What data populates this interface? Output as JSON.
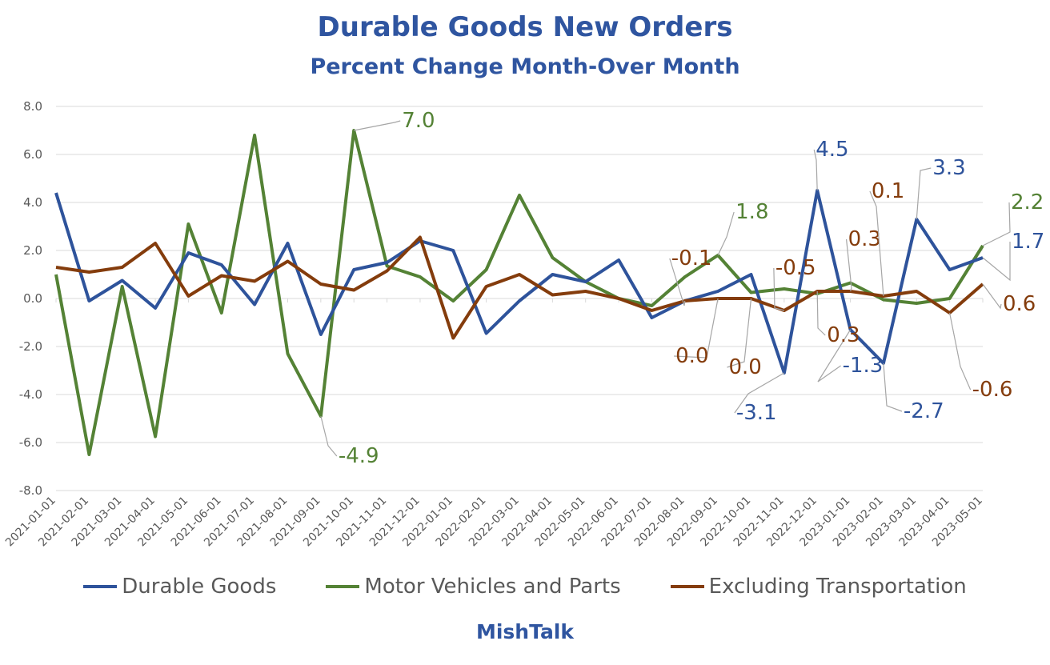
{
  "chart_data": {
    "type": "line",
    "title": "Durable Goods New Orders",
    "subtitle": "Percent Change Month-Over Month",
    "ylim": [
      -8,
      8
    ],
    "yticks": [
      "8.0",
      "6.0",
      "4.0",
      "2.0",
      "0.0",
      "-2.0",
      "-4.0",
      "-6.0",
      "-8.0"
    ],
    "ytick_values": [
      8,
      6,
      4,
      2,
      0,
      -2,
      -4,
      -6,
      -8
    ],
    "grid": true,
    "legend_position": "bottom",
    "x": [
      "2021-01-01",
      "2021-02-01",
      "2021-03-01",
      "2021-04-01",
      "2021-05-01",
      "2021-06-01",
      "2021-07-01",
      "2021-08-01",
      "2021-09-01",
      "2021-10-01",
      "2021-11-01",
      "2021-12-01",
      "2022-01-01",
      "2022-02-01",
      "2022-03-01",
      "2022-04-01",
      "2022-05-01",
      "2022-06-01",
      "2022-07-01",
      "2022-08-01",
      "2022-09-01",
      "2022-10-01",
      "2022-11-01",
      "2022-12-01",
      "2023-01-01",
      "2023-02-01",
      "2023-03-01",
      "2023-04-01",
      "2023-05-01"
    ],
    "series": [
      {
        "name": "Durable Goods",
        "color": "#2e539b",
        "values": [
          4.4,
          -0.1,
          0.75,
          -0.4,
          1.9,
          1.4,
          -0.25,
          2.3,
          -1.5,
          1.2,
          1.5,
          2.4,
          2.0,
          -1.45,
          -0.1,
          1.0,
          0.7,
          1.6,
          -0.8,
          -0.1,
          0.3,
          1.0,
          -3.1,
          4.5,
          -1.3,
          -2.7,
          3.3,
          1.2,
          1.7
        ]
      },
      {
        "name": "Motor Vehicles and Parts",
        "color": "#548235",
        "values": [
          1.0,
          -6.5,
          0.5,
          -5.75,
          3.1,
          -0.6,
          6.8,
          -2.3,
          -4.9,
          7.0,
          1.35,
          0.9,
          -0.1,
          1.2,
          4.3,
          1.7,
          0.7,
          0.0,
          -0.3,
          0.9,
          1.8,
          0.25,
          0.4,
          0.2,
          0.65,
          -0.05,
          -0.2,
          0.0,
          2.2
        ]
      },
      {
        "name": "Excluding Transportation",
        "color": "#843c0c",
        "values": [
          1.3,
          1.1,
          1.3,
          2.3,
          0.1,
          0.95,
          0.72,
          1.55,
          0.6,
          0.35,
          1.15,
          2.55,
          -1.65,
          0.5,
          1.0,
          0.15,
          0.3,
          0.0,
          -0.5,
          -0.1,
          0.0,
          0.0,
          -0.5,
          0.3,
          0.3,
          0.1,
          0.3,
          -0.6,
          0.6
        ]
      }
    ],
    "annotations": [
      {
        "text": "7.0",
        "series": 1,
        "index": 9,
        "color": "#548235"
      },
      {
        "text": "-4.9",
        "series": 1,
        "index": 8,
        "color": "#548235"
      },
      {
        "text": "1.8",
        "series": 1,
        "index": 20,
        "color": "#548235"
      },
      {
        "text": "2.2",
        "series": 1,
        "index": 28,
        "color": "#548235"
      },
      {
        "text": "4.5",
        "series": 0,
        "index": 23,
        "color": "#2e539b"
      },
      {
        "text": "3.3",
        "series": 0,
        "index": 26,
        "color": "#2e539b"
      },
      {
        "text": "1.7",
        "series": 0,
        "index": 28,
        "color": "#2e539b"
      },
      {
        "text": "-3.1",
        "series": 0,
        "index": 22,
        "color": "#2e539b"
      },
      {
        "text": "-1.3",
        "series": 0,
        "index": 24,
        "color": "#2e539b"
      },
      {
        "text": "-2.7",
        "series": 0,
        "index": 25,
        "color": "#2e539b"
      },
      {
        "text": "-0.1",
        "series": 2,
        "index": 19,
        "color": "#843c0c"
      },
      {
        "text": "-0.5",
        "series": 2,
        "index": 22,
        "color": "#843c0c"
      },
      {
        "text": "0.3",
        "series": 2,
        "index": 24,
        "color": "#843c0c"
      },
      {
        "text": "0.1",
        "series": 2,
        "index": 25,
        "color": "#843c0c"
      },
      {
        "text": "0.0",
        "series": 2,
        "index": 20,
        "color": "#843c0c"
      },
      {
        "text": "0.0",
        "series": 2,
        "index": 21,
        "color": "#843c0c"
      },
      {
        "text": "0.3",
        "series": 2,
        "index": 23,
        "color": "#843c0c"
      },
      {
        "text": "-0.6",
        "series": 2,
        "index": 27,
        "color": "#843c0c"
      },
      {
        "text": "0.6",
        "series": 2,
        "index": 28,
        "color": "#843c0c"
      }
    ]
  },
  "footer": "MishTalk"
}
